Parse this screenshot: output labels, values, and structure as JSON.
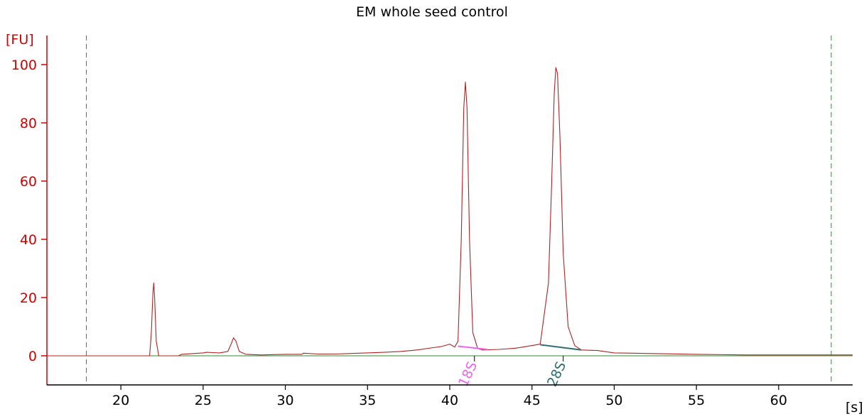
{
  "chart_data": {
    "type": "line",
    "title": "EM whole seed control",
    "ylabel": "[FU]",
    "xlabel": "[s]",
    "xlim": [
      15.5,
      64.5
    ],
    "ylim": [
      -10,
      110
    ],
    "x_ticks": [
      20,
      25,
      30,
      35,
      40,
      45,
      50,
      55,
      60
    ],
    "y_ticks": [
      0,
      20,
      40,
      60,
      80,
      100
    ],
    "grid": false,
    "colors": {
      "trace": "#b22222",
      "baseline": "#2e8b2e",
      "markers": "#2e8b2e",
      "axis_y": "#d40000",
      "axis_x": "#000000",
      "peak_18s": "#ee66ee",
      "peak_28s": "#2f6f6f"
    },
    "series": [
      {
        "x": [
          15.5,
          21.75,
          21.85,
          21.95,
          22.0,
          22.05,
          22.15,
          22.3,
          23.5,
          23.7,
          24.5,
          25.0,
          25.2,
          25.6,
          26.0,
          26.5,
          26.7,
          26.85,
          27.0,
          27.2,
          27.6,
          28.5,
          30.0,
          31.0,
          31.1,
          32.0,
          33.0,
          34.0,
          35.0,
          36.0,
          37.0,
          38.0,
          39.0,
          39.5,
          40.0,
          40.3,
          40.5,
          40.7,
          40.85,
          40.95,
          41.05,
          41.2,
          41.4,
          41.7,
          42.0,
          43.0,
          44.0,
          45.0,
          45.5,
          46.0,
          46.2,
          46.35,
          46.45,
          46.55,
          46.7,
          46.9,
          47.2,
          47.6,
          48.0,
          49.0,
          50.0,
          52.0,
          55.0,
          58.0,
          60.0,
          62.0,
          64.5
        ],
        "y": [
          0,
          0,
          8,
          22,
          25,
          20,
          5,
          0,
          0,
          0.5,
          0.8,
          1.0,
          1.2,
          1.1,
          1.0,
          1.5,
          4.0,
          6.2,
          5.0,
          1.5,
          0.5,
          0.3,
          0.5,
          0.5,
          0.9,
          0.6,
          0.6,
          0.8,
          1.0,
          1.2,
          1.5,
          2.0,
          2.8,
          3.2,
          4.0,
          3.0,
          5.0,
          40.0,
          85.0,
          94.0,
          85.0,
          40.0,
          8.0,
          2.5,
          2.0,
          2.2,
          2.6,
          3.5,
          4.0,
          25.0,
          60.0,
          90.0,
          99.0,
          97.0,
          75.0,
          35.0,
          10.0,
          3.5,
          2.0,
          1.8,
          1.0,
          0.8,
          0.5,
          0.3,
          0.3,
          0.3,
          0.3
        ]
      }
    ],
    "baseline": {
      "x": [
        15.5,
        64.5
      ],
      "y": [
        0,
        0
      ]
    },
    "markers_x": [
      17.9,
      63.2
    ],
    "annotations": [
      {
        "label": "18S",
        "x_start": 40.5,
        "y_start": 3.3,
        "x_end": 42.3,
        "y_end": 2.2,
        "tick_x": 41.5
      },
      {
        "label": "28S",
        "x_start": 45.5,
        "y_start": 3.8,
        "x_end": 48.0,
        "y_end": 2.0,
        "tick_x": 46.9
      }
    ]
  }
}
